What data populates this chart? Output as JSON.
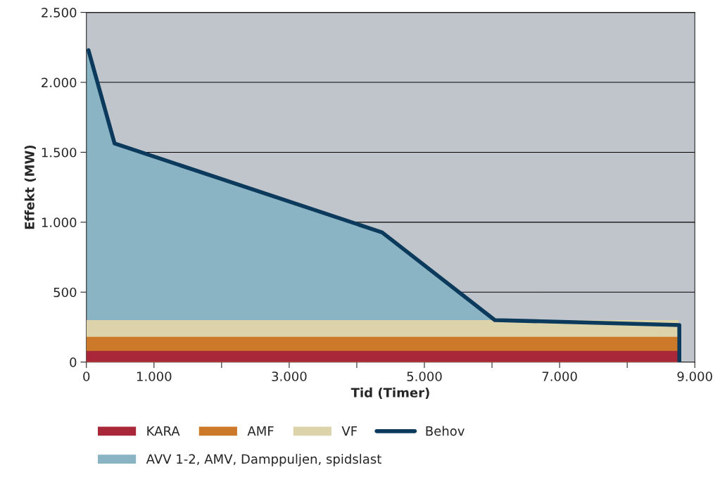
{
  "chart_data": {
    "type": "area",
    "xlabel": "Tid (Timer)",
    "ylabel": "Effekt (MW)",
    "xlim": [
      0,
      9000
    ],
    "ylim": [
      0,
      2500
    ],
    "xticks": [
      0,
      {
        "value": 1000,
        "label": "1.000"
      },
      {
        "value": 2000,
        "label": null
      },
      {
        "value": 3000,
        "label": "3.000"
      },
      {
        "value": 4000,
        "label": null
      },
      {
        "value": 5000,
        "label": "5.000"
      },
      {
        "value": 6000,
        "label": null
      },
      {
        "value": 7000,
        "label": "7.000"
      },
      {
        "value": 8000,
        "label": null
      },
      {
        "value": 9000,
        "label": "9.000"
      }
    ],
    "yticks": [
      0,
      500,
      {
        "value": 1000,
        "label": "1.000"
      },
      {
        "value": 1500,
        "label": "1.500"
      },
      {
        "value": 2000,
        "label": "2.000"
      },
      {
        "value": 2500,
        "label": "2.500"
      }
    ],
    "grid": "y",
    "legend": "bottom",
    "series": [
      {
        "name": "AVV 1-2, AMV, Damppuljen, spidslast",
        "color": "#8ab4c4",
        "x": [
          0,
          30,
          417,
          4375,
          6042
        ],
        "values": [
          2230,
          2230,
          1563,
          927,
          300
        ]
      },
      {
        "name": "VF",
        "color": "#dcd3aa",
        "x": [
          0,
          8760
        ],
        "values": [
          300,
          300
        ]
      },
      {
        "name": "AMF",
        "color": "#cc7a2a",
        "x": [
          0,
          8760
        ],
        "values": [
          180,
          180
        ]
      },
      {
        "name": "KARA",
        "color": "#a8283a",
        "x": [
          0,
          8760
        ],
        "values": [
          80,
          80
        ]
      },
      {
        "name": "Behov",
        "type": "line",
        "color": "#0b3a5c",
        "x": [
          30,
          417,
          4375,
          6042,
          8771,
          8771
        ],
        "values": [
          2230,
          1563,
          927,
          300,
          265,
          0
        ]
      }
    ]
  }
}
